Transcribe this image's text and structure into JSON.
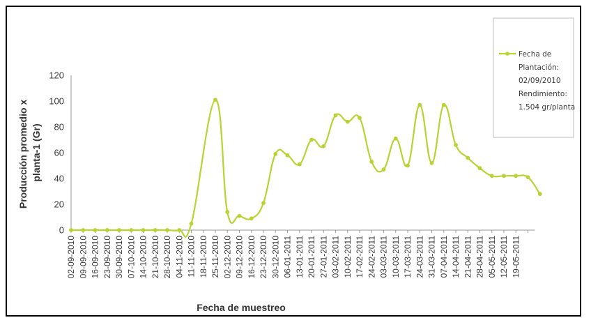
{
  "chart_data": {
    "type": "line",
    "title": "",
    "xlabel": "Fecha de muestreo",
    "ylabel_lines": [
      "Producción promedio x",
      "planta-1 (Gr)"
    ],
    "ylim": [
      0,
      120
    ],
    "yticks": [
      0,
      20,
      40,
      60,
      80,
      100,
      120
    ],
    "x_tick_labels": [
      "02-09-2010",
      "09-09-2010",
      "16-09-2010",
      "23-09-2010",
      "30-09-2010",
      "07-10-2010",
      "14-10-2010",
      "21-10-2010",
      "28-10-2010",
      "04-11-2010",
      "11-11-2010",
      "18-11-2010",
      "25-11-2010",
      "02-12-2010",
      "09-12-2010",
      "16-12-2010",
      "23-12-2010",
      "30-12-2010",
      "06-01-2011",
      "13-01-2011",
      "20-01-2011",
      "27-01-2011",
      "03-02-2011",
      "10-02-2011",
      "17-02-2011",
      "24-02-2011",
      "03-03-2011",
      "10-03-2011",
      "17-03-2011",
      "24-03-2011",
      "31-03-2011",
      "07-04-2011",
      "14-04-2011",
      "21-04-2011",
      "28-04-2011",
      "05-05-2011",
      "12-05-2011",
      "19-05-2011"
    ],
    "x_points": [
      0,
      1,
      2,
      3,
      4,
      5,
      6,
      7,
      8,
      9,
      10,
      12,
      13,
      14,
      15,
      16,
      17,
      18,
      19,
      20,
      21,
      22,
      23,
      24,
      25,
      26,
      27,
      28,
      29,
      30,
      31,
      32,
      33,
      34,
      35,
      36,
      37,
      38,
      39
    ],
    "series": [
      {
        "name": "",
        "color": "#b7d432",
        "values": [
          0,
          0,
          0,
          0,
          0,
          0,
          0,
          0,
          0,
          0,
          5,
          101,
          14,
          11,
          9,
          21,
          59,
          58,
          51,
          70,
          65,
          89,
          84,
          87,
          53,
          47,
          71,
          50,
          97,
          52,
          97,
          66,
          56,
          48,
          42,
          42,
          42,
          41,
          28
        ]
      }
    ],
    "legend": {
      "position": "top-right",
      "lines": [
        "Fecha de",
        "Plantación:",
        "02/09/2010",
        "Rendimiento:",
        "1.504 gr/planta"
      ]
    },
    "grid": false
  }
}
